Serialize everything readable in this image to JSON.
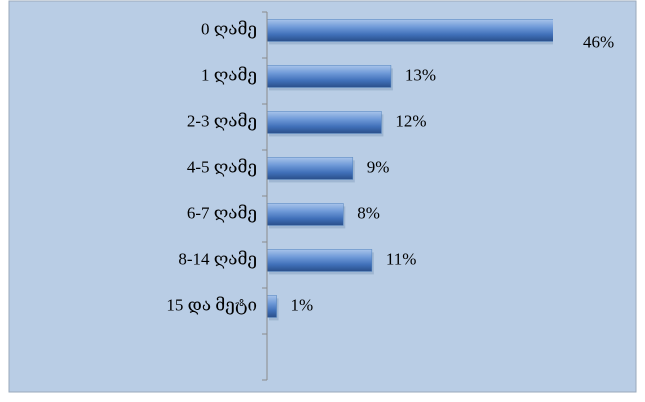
{
  "chart_data": {
    "type": "barh",
    "categories": [
      "0 ღამე",
      "1 ღამე",
      "2-3 ღამე",
      "4-5 ღამე",
      "6-7 ღამე",
      "8-14 ღამე",
      "15 და მეტი"
    ],
    "values": [
      46,
      13,
      12,
      9,
      8,
      11,
      1
    ],
    "value_labels": [
      "46%",
      "13%",
      "12%",
      "9%",
      "8%",
      "11%",
      "1%"
    ],
    "color": "#4f81bd",
    "xlim": [
      0,
      30
    ]
  }
}
